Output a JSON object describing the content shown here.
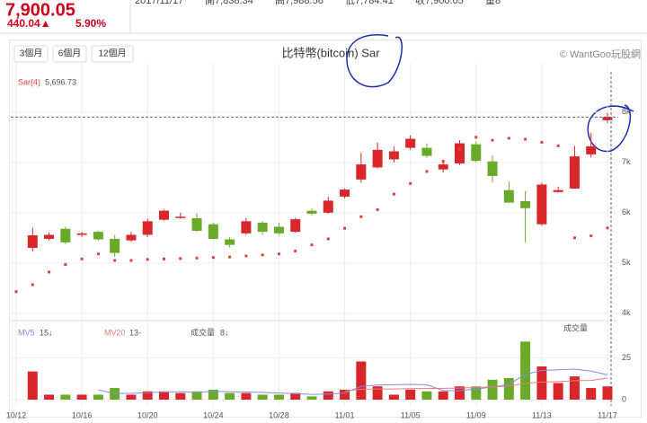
{
  "header": {
    "price": "7,900.05",
    "change": "440.04▲",
    "change_pct": "5.90%",
    "quote_row": [
      "2017/11/17",
      "開7,838.34",
      "高7,988.56",
      "低7,784.41",
      "收7,900.05",
      "量8"
    ]
  },
  "buttons": [
    "3個月",
    "6個月",
    "12個月"
  ],
  "chart_data": [
    {
      "type": "candlestick",
      "title": "比特幣(bitcoin) Sar",
      "source": "© WantGoo玩股網",
      "categories": [
        "10/12",
        null,
        null,
        null,
        "10/16",
        null,
        null,
        null,
        "10/20",
        null,
        null,
        null,
        "10/24",
        null,
        null,
        null,
        "10/28",
        null,
        null,
        null,
        "11/01",
        null,
        null,
        null,
        "11/05",
        null,
        null,
        null,
        "11/09",
        null,
        null,
        null,
        "11/13",
        null,
        null,
        null,
        "11/17"
      ],
      "open": [
        null,
        5300,
        5480,
        5680,
        5560,
        5620,
        5480,
        5450,
        5560,
        5860,
        5900,
        5890,
        5770,
        5470,
        5590,
        5800,
        5720,
        5620,
        6040,
        6000,
        6320,
        6660,
        6900,
        7060,
        7290,
        7290,
        6860,
        6980,
        7360,
        7020,
        6450,
        6230,
        5770,
        6410,
        6480,
        7160,
        7838.34
      ],
      "high": [
        null,
        5700,
        5600,
        5720,
        5620,
        5640,
        5560,
        5620,
        5880,
        6060,
        6000,
        5990,
        5800,
        5520,
        5900,
        5830,
        5800,
        5900,
        6080,
        6320,
        6480,
        7200,
        7400,
        7320,
        7540,
        7380,
        7050,
        7440,
        7420,
        7140,
        6620,
        6430,
        6600,
        6520,
        7330,
        7590,
        7988.56
      ],
      "low": [
        null,
        5230,
        5450,
        5380,
        5520,
        5440,
        5120,
        5420,
        5520,
        5840,
        5880,
        5620,
        5470,
        5310,
        5560,
        5560,
        5560,
        5600,
        5950,
        5980,
        6290,
        6600,
        6880,
        7000,
        7250,
        7100,
        6800,
        6950,
        7000,
        6600,
        6200,
        5410,
        5740,
        6400,
        6480,
        7100,
        7784.41
      ],
      "close": [
        null,
        5550,
        5560,
        5410,
        5590,
        5470,
        5200,
        5560,
        5830,
        6040,
        5920,
        5640,
        5480,
        5360,
        5830,
        5620,
        5590,
        5870,
        5980,
        6240,
        6460,
        6960,
        7250,
        7220,
        7470,
        7130,
        6960,
        7380,
        7030,
        6730,
        6200,
        6090,
        6560,
        6450,
        7120,
        7320,
        7900.05
      ],
      "up_color": "#d9262a",
      "down_color": "#6aaa2a",
      "sar": {
        "name": "Sar(4)",
        "color": "#e0403a",
        "last_value_label": "5,696.73",
        "values": [
          4430,
          4570,
          4820,
          4970,
          5080,
          5180,
          5050,
          5050,
          5070,
          5080,
          5090,
          5100,
          5110,
          5120,
          5140,
          5160,
          5180,
          5240,
          5360,
          5480,
          5690,
          5920,
          6060,
          6370,
          6580,
          6820,
          7020,
          7260,
          7500,
          7440,
          7480,
          7460,
          7400,
          7330,
          5500,
          5540,
          5696.73
        ]
      },
      "ylim": [
        3890,
        8890
      ],
      "yticks": [
        {
          "value": 4000,
          "label": "4k"
        },
        {
          "value": 5000,
          "label": "5k"
        },
        {
          "value": 6000,
          "label": "6k"
        },
        {
          "value": 7000,
          "label": "7k"
        },
        {
          "value": 8000,
          "label": "8k"
        }
      ],
      "grid": true
    },
    {
      "type": "bar",
      "y_label": "成交量",
      "series": [
        {
          "name": "成交量",
          "value_label": "8↓",
          "values": [
            null,
            17,
            3,
            3,
            3,
            3,
            7,
            3,
            5,
            5,
            4,
            5,
            6,
            4,
            4,
            3,
            3,
            4,
            2,
            5,
            6,
            23,
            8,
            3,
            6,
            5,
            5,
            8,
            8,
            12,
            13,
            35,
            20,
            10,
            14,
            7,
            8
          ]
        },
        {
          "name": "MV5",
          "value_label": "15↓",
          "color": "#7d8ee8",
          "values": [
            null,
            null,
            null,
            null,
            null,
            5.8,
            3.8,
            3.8,
            4.2,
            4.6,
            4.8,
            4.4,
            5,
            4.8,
            4.6,
            4.4,
            4,
            3.6,
            3.2,
            3.4,
            4,
            8,
            8.8,
            9,
            9.2,
            9,
            5.4,
            5.4,
            6.4,
            7.6,
            9.2,
            15.2,
            17.6,
            18,
            18.4,
            17.2,
            15
          ]
        },
        {
          "name": "MV20",
          "value_label": "13-",
          "color": "#e87d7d",
          "values": [
            null,
            null,
            null,
            null,
            null,
            null,
            null,
            null,
            null,
            null,
            null,
            null,
            null,
            null,
            null,
            null,
            null,
            null,
            null,
            null,
            5.2,
            6.2,
            6.4,
            6.4,
            6.6,
            6.7,
            6.8,
            7,
            7.3,
            7.7,
            8.2,
            9.8,
            10.6,
            10.9,
            11.4,
            11.6,
            13
          ]
        }
      ],
      "ylim": [
        0,
        46
      ],
      "yticks": [
        0,
        25
      ],
      "grid": true
    }
  ]
}
